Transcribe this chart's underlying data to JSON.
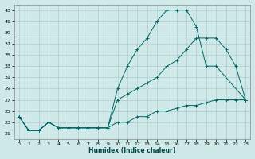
{
  "xlabel": "Humidex (Indice chaleur)",
  "bg_color": "#cfe8e8",
  "grid_color": "#b0cccc",
  "line_color": "#006868",
  "xlim": [
    -0.5,
    23.5
  ],
  "ylim": [
    20.0,
    44.0
  ],
  "yticks": [
    21,
    23,
    25,
    27,
    29,
    31,
    33,
    35,
    37,
    39,
    41,
    43
  ],
  "xticks": [
    0,
    1,
    2,
    3,
    4,
    5,
    6,
    7,
    8,
    9,
    10,
    11,
    12,
    13,
    14,
    15,
    16,
    17,
    18,
    19,
    20,
    21,
    22,
    23
  ],
  "line1_x": [
    0,
    1,
    2,
    3,
    4,
    5,
    6,
    7,
    8,
    9,
    10,
    11,
    12,
    13,
    14,
    15,
    16,
    17,
    18,
    19,
    20,
    23
  ],
  "line1_y": [
    24,
    21.5,
    21.5,
    23,
    22,
    22,
    22,
    22,
    22,
    22,
    29,
    33,
    36,
    38,
    41,
    43,
    43,
    43,
    40,
    33,
    33,
    27
  ],
  "line2_x": [
    0,
    1,
    2,
    3,
    4,
    5,
    6,
    7,
    8,
    9,
    10,
    11,
    12,
    13,
    14,
    15,
    16,
    17,
    18,
    19,
    20,
    21,
    22,
    23
  ],
  "line2_y": [
    24,
    21.5,
    21.5,
    23,
    22,
    22,
    22,
    22,
    22,
    22,
    27,
    28,
    29,
    30,
    31,
    33,
    34,
    36,
    38,
    38,
    38,
    36,
    33,
    27
  ],
  "line3_x": [
    0,
    1,
    2,
    3,
    4,
    5,
    6,
    7,
    8,
    9,
    10,
    11,
    12,
    13,
    14,
    15,
    16,
    17,
    18,
    19,
    20,
    21,
    22,
    23
  ],
  "line3_y": [
    24,
    21.5,
    21.5,
    23,
    22,
    22,
    22,
    22,
    22,
    22,
    23,
    23,
    24,
    24,
    25,
    25,
    25.5,
    26,
    26,
    26.5,
    27,
    27,
    27,
    27
  ]
}
